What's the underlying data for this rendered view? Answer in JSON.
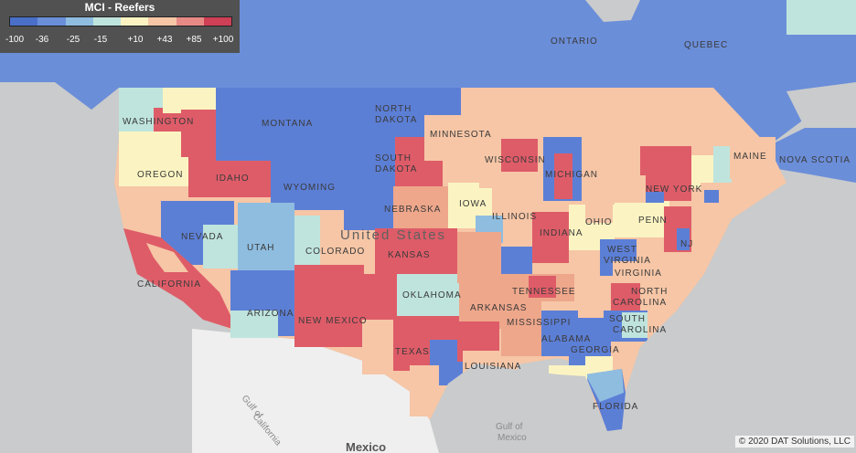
{
  "legend": {
    "title": "MCI - Reefers",
    "ticks": [
      "-100",
      "-36",
      "-25",
      "-15",
      "+10",
      "+43",
      "+85",
      "+100"
    ],
    "colors": [
      "#4a6fc9",
      "#6b8ed9",
      "#8fbde0",
      "#bfe4dd",
      "#fbf4c2",
      "#f6c6a6",
      "#e78a86",
      "#cf3f55"
    ]
  },
  "palette": {
    "strong_blue": "#6b8ed9",
    "blue": "#5c7fd6",
    "light_blue": "#8fbde0",
    "teal": "#bfe4dd",
    "yellow": "#fbf4c2",
    "peach": "#f6c6a6",
    "salmon": "#eea78b",
    "red": "#de5c68",
    "deep_red": "#cf3f55",
    "water": "#c9cbcc",
    "mexico_land": "#efefef"
  },
  "labels": {
    "ontario": "ONTARIO",
    "quebec": "QUEBEC",
    "washington": "WASHINGTON",
    "montana": "MONTANA",
    "north_dakota_1": "NORTH",
    "north_dakota_2": "DAKOTA",
    "minnesota": "MINNESOTA",
    "oregon": "OREGON",
    "idaho": "IDAHO",
    "south_dakota_1": "SOUTH",
    "south_dakota_2": "DAKOTA",
    "wisconsin": "WISCONSIN",
    "michigan": "MICHIGAN",
    "maine": "MAINE",
    "nova_scotia": "NOVA SCOTIA",
    "wyoming": "WYOMING",
    "iowa": "IOWA",
    "new_york": "NEW YORK",
    "nebraska": "NEBRASKA",
    "illinois": "ILLINOIS",
    "ohio": "OHIO",
    "penn": "PENN",
    "nevada": "NEVADA",
    "utah": "UTAH",
    "colorado": "COLORADO",
    "united_states": "United States",
    "kansas": "KANSAS",
    "indiana": "INDIANA",
    "nj": "NJ",
    "west_virginia_1": "WEST",
    "west_virginia_2": "VIRGINIA",
    "virginia": "VIRGINIA",
    "california": "CALIFORNIA",
    "arizona": "ARIZONA",
    "oklahoma": "OKLAHOMA",
    "tennessee": "TENNESSEE",
    "arkansas": "ARKANSAS",
    "north_carolina": "NORTH",
    "carolina": "CAROLINA",
    "new_mexico": "NEW MEXICO",
    "mississippi": "MISSISSIPPI",
    "south_carolina_1": "SOUTH",
    "south_carolina_2": "CAROLINA",
    "texas": "TEXAS",
    "alabama": "ALABAMA",
    "georgia": "GEORGIA",
    "louisiana": "LOUISIANA",
    "florida": "FLORIDA",
    "gulf_california_1": "Gulf of",
    "gulf_california_2": "California",
    "gulf_mexico_1": "Gulf of",
    "gulf_mexico_2": "Mexico",
    "mexico": "Mexico"
  },
  "copyright": "© 2020 DAT Solutions, LLC"
}
